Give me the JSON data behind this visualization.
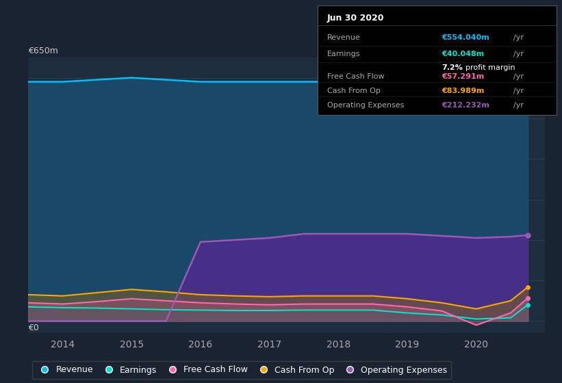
{
  "bg_color": "#1a2332",
  "plot_bg_color": "#1e2d3d",
  "grid_color": "#2a3f52",
  "xlabel_color": "#aaaaaa",
  "ylabel_color": "#cccccc",
  "ylim": [
    0,
    650
  ],
  "xlim": [
    2013.5,
    2021.0
  ],
  "ylabel_label": "€650m",
  "ylabel_zero": "€0",
  "x_ticks": [
    2014,
    2015,
    2016,
    2017,
    2018,
    2019,
    2020
  ],
  "legend": [
    {
      "label": "Revenue",
      "color": "#00bfff"
    },
    {
      "label": "Earnings",
      "color": "#00e5cc"
    },
    {
      "label": "Free Cash Flow",
      "color": "#ff69b4"
    },
    {
      "label": "Cash From Op",
      "color": "#ffa500"
    },
    {
      "label": "Operating Expenses",
      "color": "#9b59b6"
    }
  ],
  "series": {
    "years": [
      2013.5,
      2014.0,
      2014.5,
      2015.0,
      2015.5,
      2016.0,
      2016.5,
      2017.0,
      2017.5,
      2018.0,
      2018.5,
      2019.0,
      2019.5,
      2020.0,
      2020.5,
      2020.75
    ],
    "revenue": [
      590,
      590,
      595,
      600,
      595,
      590,
      590,
      590,
      590,
      590,
      590,
      570,
      545,
      510,
      520,
      554
    ],
    "earnings": [
      35,
      33,
      32,
      30,
      28,
      27,
      26,
      26,
      27,
      27,
      27,
      20,
      15,
      5,
      8,
      40
    ],
    "free_cash_flow": [
      45,
      42,
      48,
      55,
      50,
      45,
      42,
      40,
      42,
      42,
      42,
      35,
      25,
      -10,
      20,
      57
    ],
    "cash_from_op": [
      65,
      62,
      70,
      78,
      72,
      65,
      62,
      60,
      62,
      62,
      62,
      55,
      45,
      30,
      50,
      84
    ],
    "op_expenses": [
      0,
      0,
      0,
      0,
      0,
      195,
      200,
      205,
      215,
      215,
      215,
      215,
      210,
      205,
      208,
      212
    ]
  },
  "tooltip": {
    "date": "Jun 30 2020",
    "rows": [
      {
        "label": "Revenue",
        "val": "€554.040m",
        "color": "#00bfff",
        "extra": null
      },
      {
        "label": "Earnings",
        "val": "€40.048m",
        "color": "#00e5cc",
        "extra": "7.2% profit margin"
      },
      {
        "label": "Free Cash Flow",
        "val": "€57.291m",
        "color": "#ff69b4",
        "extra": null
      },
      {
        "label": "Cash From Op",
        "val": "€83.989m",
        "color": "#ffa500",
        "extra": null
      },
      {
        "label": "Operating Expenses",
        "val": "€212.232m",
        "color": "#9b59b6",
        "extra": null
      }
    ]
  }
}
